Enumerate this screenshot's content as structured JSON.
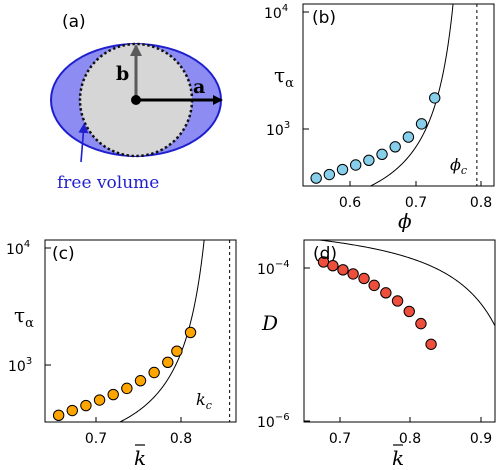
{
  "panels": {
    "a": {
      "label": "(a)",
      "vec_a": "a",
      "vec_b": "b",
      "caption": "free volume"
    },
    "b": {
      "label": "(b)",
      "ylabel_main": "τ",
      "ylabel_sub": "α",
      "xlabel": "ϕ",
      "crit_main": "ϕ",
      "crit_sub": "c"
    },
    "c": {
      "label": "(c)",
      "ylabel_main": "τ",
      "ylabel_sub": "α",
      "xlabel": "k",
      "crit_main": "k",
      "crit_sub": "c"
    },
    "d": {
      "label": "(d)",
      "ylabel": "D",
      "xlabel": "k"
    }
  },
  "colors": {
    "ellipse_fill": "#8c8cf2",
    "ellipse_stroke": "#1f1fcf",
    "circle_fill": "#d6d6d6",
    "annotation_blue": "#1f1fcf",
    "b_markers": "#87ceeb",
    "c_markers": "#ffa500",
    "d_markers": "#ee4e3c"
  },
  "chart_data": [
    {
      "panel": "b",
      "type": "scatter",
      "xlabel": "ϕ",
      "ylabel": "τα",
      "xlim": [
        0.52,
        0.81
      ],
      "ylim": [
        400,
        10000
      ],
      "yscale": "log",
      "xticks": [
        "0.6",
        "0.7",
        "0.8"
      ],
      "yticks": [
        "10^3",
        "10^4"
      ],
      "critical_x": 0.784,
      "critical_label": "ϕc",
      "series": [
        {
          "x": [
            0.54,
            0.56,
            0.58,
            0.6,
            0.62,
            0.64,
            0.66,
            0.68,
            0.7,
            0.72
          ],
          "y": [
            460,
            490,
            535,
            580,
            630,
            700,
            800,
            950,
            1200,
            1900
          ]
        }
      ],
      "fit_curve": {
        "form": "A*exp(B/(xc-x))",
        "A": 158,
        "B": 0.15,
        "xc": 0.784
      }
    },
    {
      "panel": "c",
      "type": "scatter",
      "xlabel": "k̄",
      "ylabel": "τα",
      "xlim": [
        0.645,
        0.855
      ],
      "ylim": [
        400,
        10000
      ],
      "yscale": "log",
      "xticks": [
        "0.7",
        "0.8"
      ],
      "yticks": [
        "10^3",
        "10^4"
      ],
      "critical_x": 0.848,
      "critical_label": "kc",
      "series": [
        {
          "x": [
            0.66,
            0.675,
            0.69,
            0.705,
            0.72,
            0.735,
            0.75,
            0.765,
            0.78,
            0.79,
            0.805
          ],
          "y": [
            450,
            490,
            535,
            590,
            650,
            725,
            830,
            960,
            1150,
            1400,
            1950
          ]
        }
      ],
      "fit_curve": {
        "form": "A*exp(B/(xc-x))",
        "A": 151,
        "B": 0.1175,
        "xc": 0.848
      }
    },
    {
      "panel": "d",
      "type": "scatter",
      "xlabel": "k̄",
      "ylabel": "D",
      "xlim": [
        0.67,
        0.915
      ],
      "ylim": [
        1e-06,
        0.00015
      ],
      "yscale": "log",
      "xticks": [
        "0.7",
        "0.8",
        "0.9"
      ],
      "yticks": [
        "10^-4",
        "10^-6"
      ],
      "series": [
        {
          "x": [
            0.695,
            0.707,
            0.72,
            0.733,
            0.747,
            0.76,
            0.775,
            0.79,
            0.805,
            0.82,
            0.833
          ],
          "y": [
            8.2e-05,
            7.4e-05,
            6.6e-05,
            5.9e-05,
            5.2e-05,
            4.3e-05,
            3.5e-05,
            2.8e-05,
            2.1e-05,
            1.5e-05,
            8.5e-06
          ]
        }
      ],
      "fit_curve": {
        "form": "A*exp(-B/(xc-x))",
        "A": 0.00033,
        "B": 0.2366,
        "xc": 0.99
      }
    }
  ]
}
